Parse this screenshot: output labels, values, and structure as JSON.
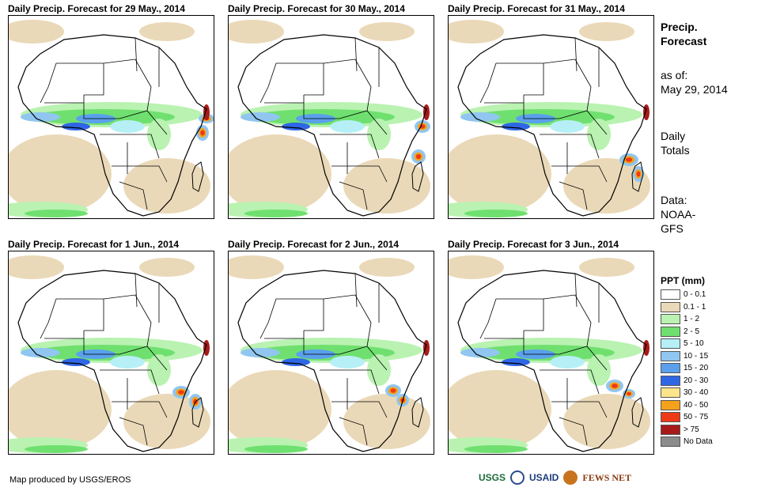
{
  "panels": [
    {
      "title": "Daily Precip. Forecast for 29 May., 2014"
    },
    {
      "title": "Daily Precip. Forecast for 30 May., 2014"
    },
    {
      "title": "Daily Precip. Forecast for 31 May., 2014"
    },
    {
      "title": "Daily Precip. Forecast for 1 Jun., 2014"
    },
    {
      "title": "Daily Precip. Forecast for 2 Jun., 2014"
    },
    {
      "title": "Daily Precip. Forecast for 3 Jun., 2014"
    }
  ],
  "side": {
    "title1": "Precip.",
    "title2": "Forecast",
    "asof_label": "as of:",
    "asof_date": "May 29, 2014",
    "daily1": "Daily",
    "daily2": "Totals",
    "data1": "Data:",
    "data2": "NOAA-",
    "data3": "GFS"
  },
  "legend": {
    "title": "PPT (mm)",
    "items": [
      {
        "label": "0 - 0.1",
        "color": "#ffffff"
      },
      {
        "label": "0.1 - 1",
        "color": "#ead9b8"
      },
      {
        "label": "1 - 2",
        "color": "#b9f2b1"
      },
      {
        "label": "2 - 5",
        "color": "#6fe06f"
      },
      {
        "label": "5 - 10",
        "color": "#b6f0f6"
      },
      {
        "label": "10 - 15",
        "color": "#90c6f0"
      },
      {
        "label": "15 - 20",
        "color": "#5aa0ec"
      },
      {
        "label": "20 - 30",
        "color": "#2f66e6"
      },
      {
        "label": "30 - 40",
        "color": "#fce48a"
      },
      {
        "label": "40 - 50",
        "color": "#f5a21a"
      },
      {
        "label": "50 - 75",
        "color": "#ee3a16"
      },
      {
        "label": "> 75",
        "color": "#a81a1a"
      },
      {
        "label": "No Data",
        "color": "#8c8c8c"
      }
    ]
  },
  "footer": {
    "credit": "Map produced by USGS/EROS"
  },
  "logos": {
    "usgs": "USGS",
    "usaid": "USAID",
    "fews": "FEWS NET"
  }
}
